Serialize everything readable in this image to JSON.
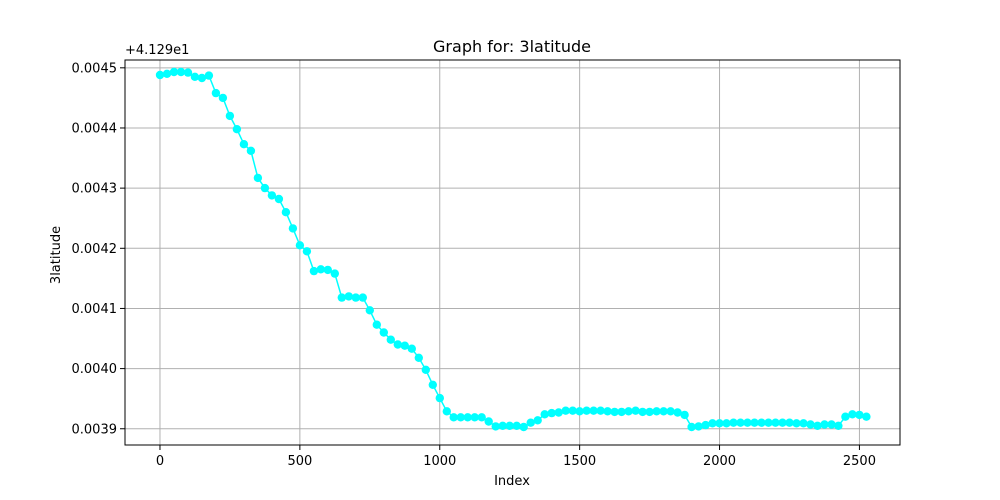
{
  "chart_data": {
    "type": "line",
    "title": "Graph for: 3latitude",
    "xlabel": "Index",
    "ylabel": "3latitude",
    "offset_text": "+4.129e1",
    "y_offset": 41.29,
    "xlim": [
      -125,
      2645
    ],
    "ylim": [
      0.003873,
      0.004513
    ],
    "xticks": [
      0,
      500,
      1000,
      1500,
      2000,
      2500
    ],
    "xtick_labels": [
      "0",
      "500",
      "1000",
      "1500",
      "2000",
      "2500"
    ],
    "yticks": [
      0.0039,
      0.004,
      0.0041,
      0.0042,
      0.0043,
      0.0044,
      0.0045
    ],
    "ytick_labels": [
      "0.0039",
      "0.0040",
      "0.0041",
      "0.0042",
      "0.0043",
      "0.0044",
      "0.0045"
    ],
    "grid": true,
    "line_color": "#00ffff",
    "marker": "circle",
    "series": [
      {
        "x": [
          0,
          25,
          50,
          75,
          100,
          125,
          150,
          175,
          200,
          225,
          250,
          275,
          300,
          325,
          350,
          375,
          400,
          425,
          450,
          475,
          500,
          525,
          550,
          575,
          600,
          625,
          650,
          675,
          700,
          725,
          750,
          775,
          800,
          825,
          850,
          875,
          900,
          925,
          950,
          975,
          1000,
          1025,
          1050,
          1075,
          1100,
          1125,
          1150,
          1175,
          1200,
          1225,
          1250,
          1275,
          1300,
          1325,
          1350,
          1375,
          1400,
          1425,
          1450,
          1475,
          1500,
          1525,
          1550,
          1575,
          1600,
          1625,
          1650,
          1675,
          1700,
          1725,
          1750,
          1775,
          1800,
          1825,
          1850,
          1875,
          1900,
          1925,
          1950,
          1975,
          2000,
          2025,
          2050,
          2075,
          2100,
          2125,
          2150,
          2175,
          2200,
          2225,
          2250,
          2275,
          2300,
          2325,
          2350,
          2375,
          2400,
          2425,
          2450,
          2475,
          2500,
          2525
        ],
        "y": [
          0.004488,
          0.00449,
          0.004493,
          0.004493,
          0.004492,
          0.004485,
          0.004483,
          0.004487,
          0.004458,
          0.00445,
          0.00442,
          0.004398,
          0.004373,
          0.004362,
          0.004317,
          0.0043,
          0.004288,
          0.004282,
          0.00426,
          0.004233,
          0.004205,
          0.004195,
          0.004162,
          0.004165,
          0.004164,
          0.004158,
          0.004118,
          0.00412,
          0.004118,
          0.004118,
          0.004097,
          0.004073,
          0.00406,
          0.004048,
          0.00404,
          0.004038,
          0.004033,
          0.004018,
          0.003998,
          0.003973,
          0.003951,
          0.003929,
          0.003919,
          0.003919,
          0.003919,
          0.003919,
          0.003919,
          0.003912,
          0.003904,
          0.003905,
          0.003905,
          0.003905,
          0.003903,
          0.00391,
          0.003914,
          0.003924,
          0.003926,
          0.003927,
          0.00393,
          0.00393,
          0.003929,
          0.00393,
          0.00393,
          0.00393,
          0.003929,
          0.003928,
          0.003928,
          0.003929,
          0.00393,
          0.003928,
          0.003928,
          0.003929,
          0.003929,
          0.003929,
          0.003927,
          0.003923,
          0.003903,
          0.003904,
          0.003906,
          0.003909,
          0.003909,
          0.003909,
          0.00391,
          0.00391,
          0.00391,
          0.00391,
          0.00391,
          0.00391,
          0.00391,
          0.00391,
          0.00391,
          0.003909,
          0.003909,
          0.003907,
          0.003905,
          0.003907,
          0.003907,
          0.003905,
          0.00392,
          0.003924,
          0.003923,
          0.00392
        ]
      }
    ]
  }
}
